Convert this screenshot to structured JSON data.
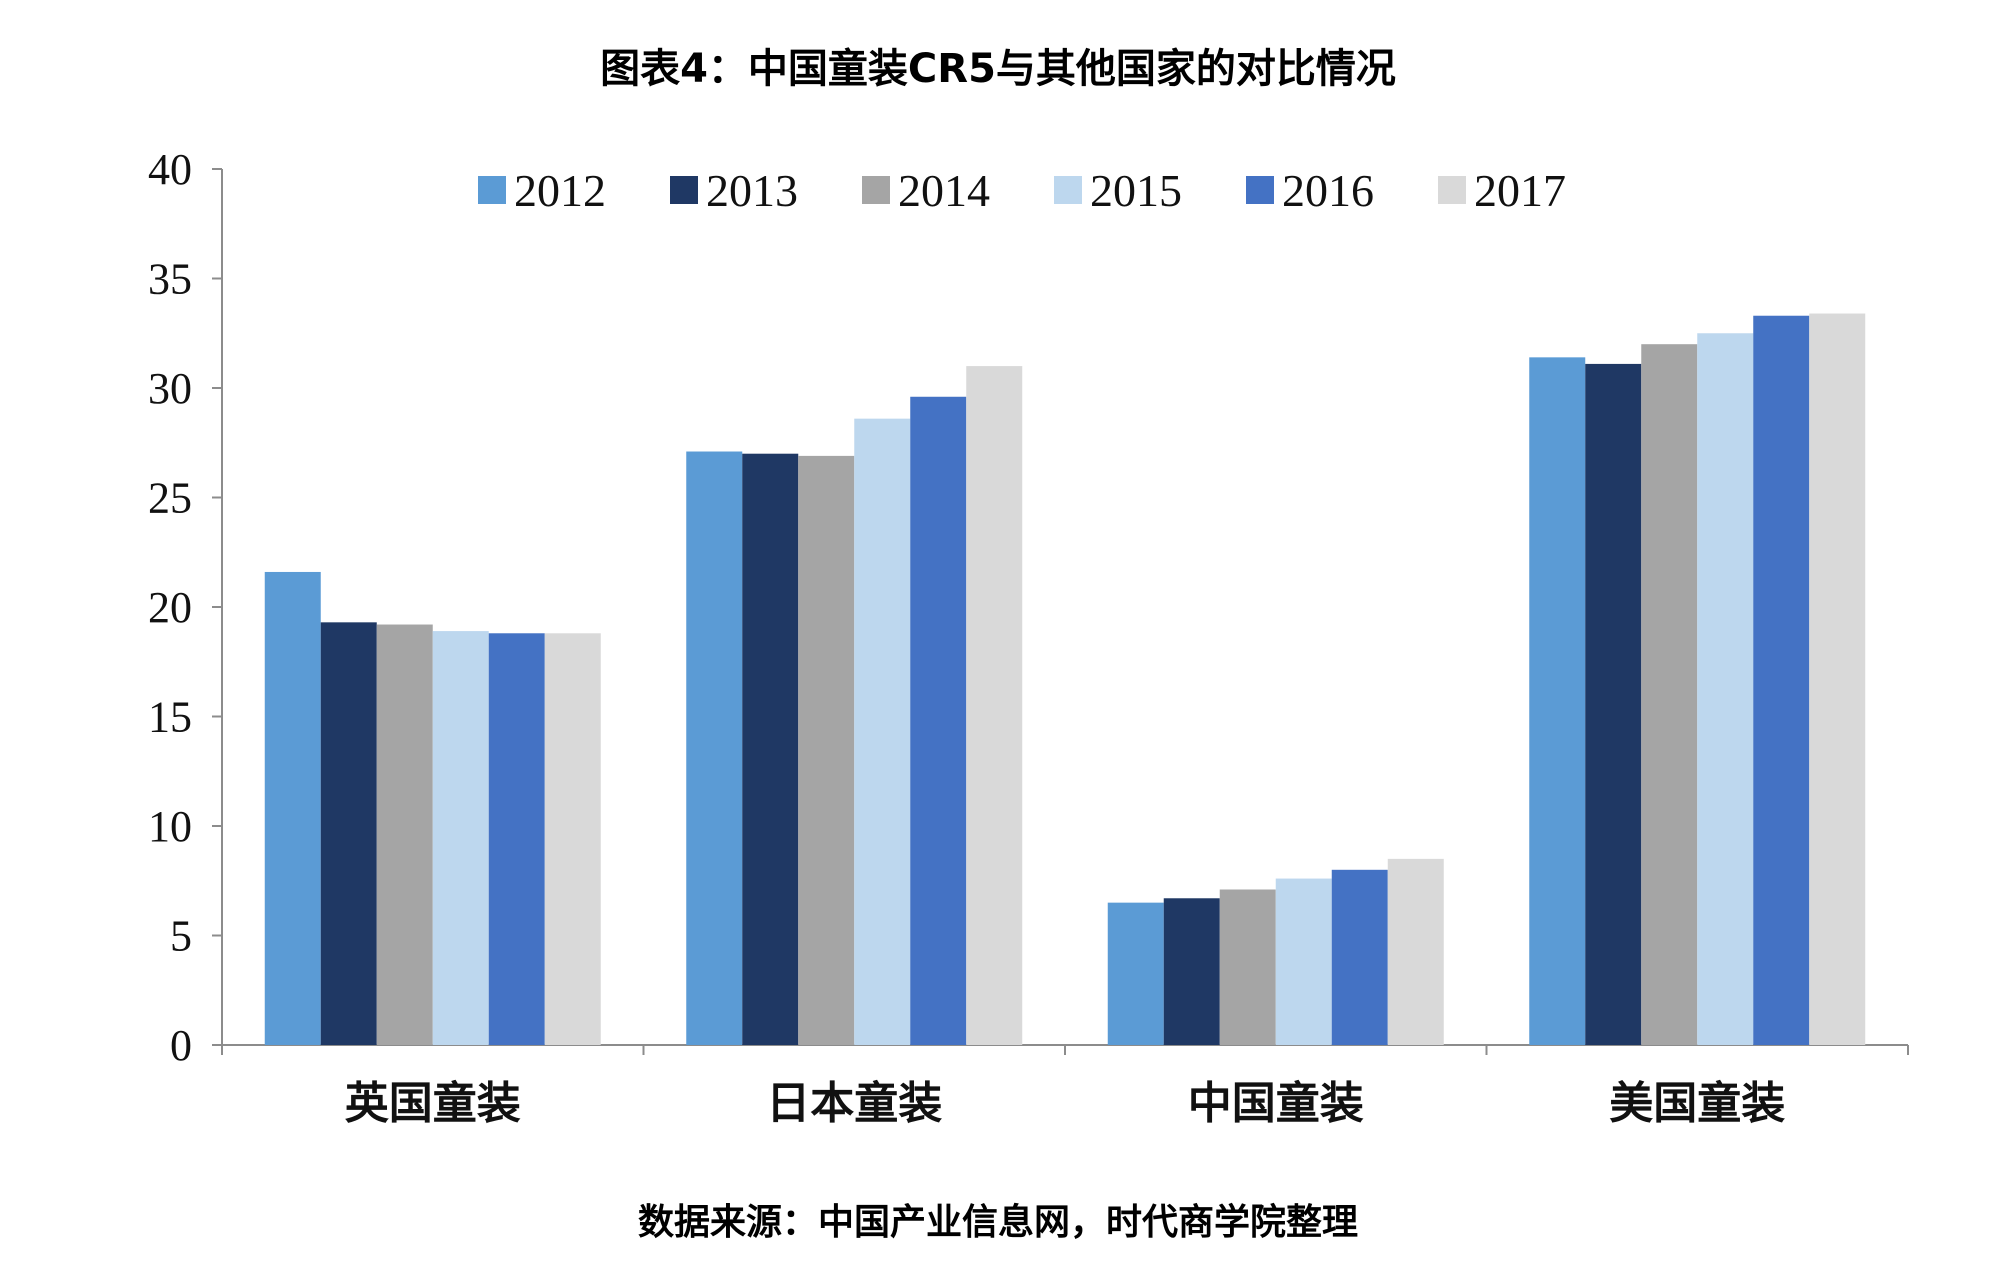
{
  "chart_data": {
    "type": "bar",
    "title": "图表4：中国童装CR5与其他国家的对比情况",
    "source": "数据来源：中国产业信息网，时代商学院整理",
    "categories": [
      "英国童装",
      "日本童装",
      "中国童装",
      "美国童装"
    ],
    "ylim": [
      0,
      40
    ],
    "yticks": [
      0,
      5,
      10,
      15,
      20,
      25,
      30,
      35,
      40
    ],
    "legend_position": "top",
    "series": [
      {
        "name": "2012",
        "color": "#5b9bd5",
        "values": [
          21.6,
          27.1,
          6.5,
          31.4
        ]
      },
      {
        "name": "2013",
        "color": "#1f3864",
        "values": [
          19.3,
          27.0,
          6.7,
          31.1
        ]
      },
      {
        "name": "2014",
        "color": "#a5a5a5",
        "values": [
          19.2,
          26.9,
          7.1,
          32.0
        ]
      },
      {
        "name": "2015",
        "color": "#bdd7ee",
        "values": [
          18.9,
          28.6,
          7.6,
          32.5
        ]
      },
      {
        "name": "2016",
        "color": "#4472c4",
        "values": [
          18.8,
          29.6,
          8.0,
          33.3
        ]
      },
      {
        "name": "2017",
        "color": "#d9d9d9",
        "values": [
          18.8,
          31.0,
          8.5,
          33.4
        ]
      }
    ]
  }
}
